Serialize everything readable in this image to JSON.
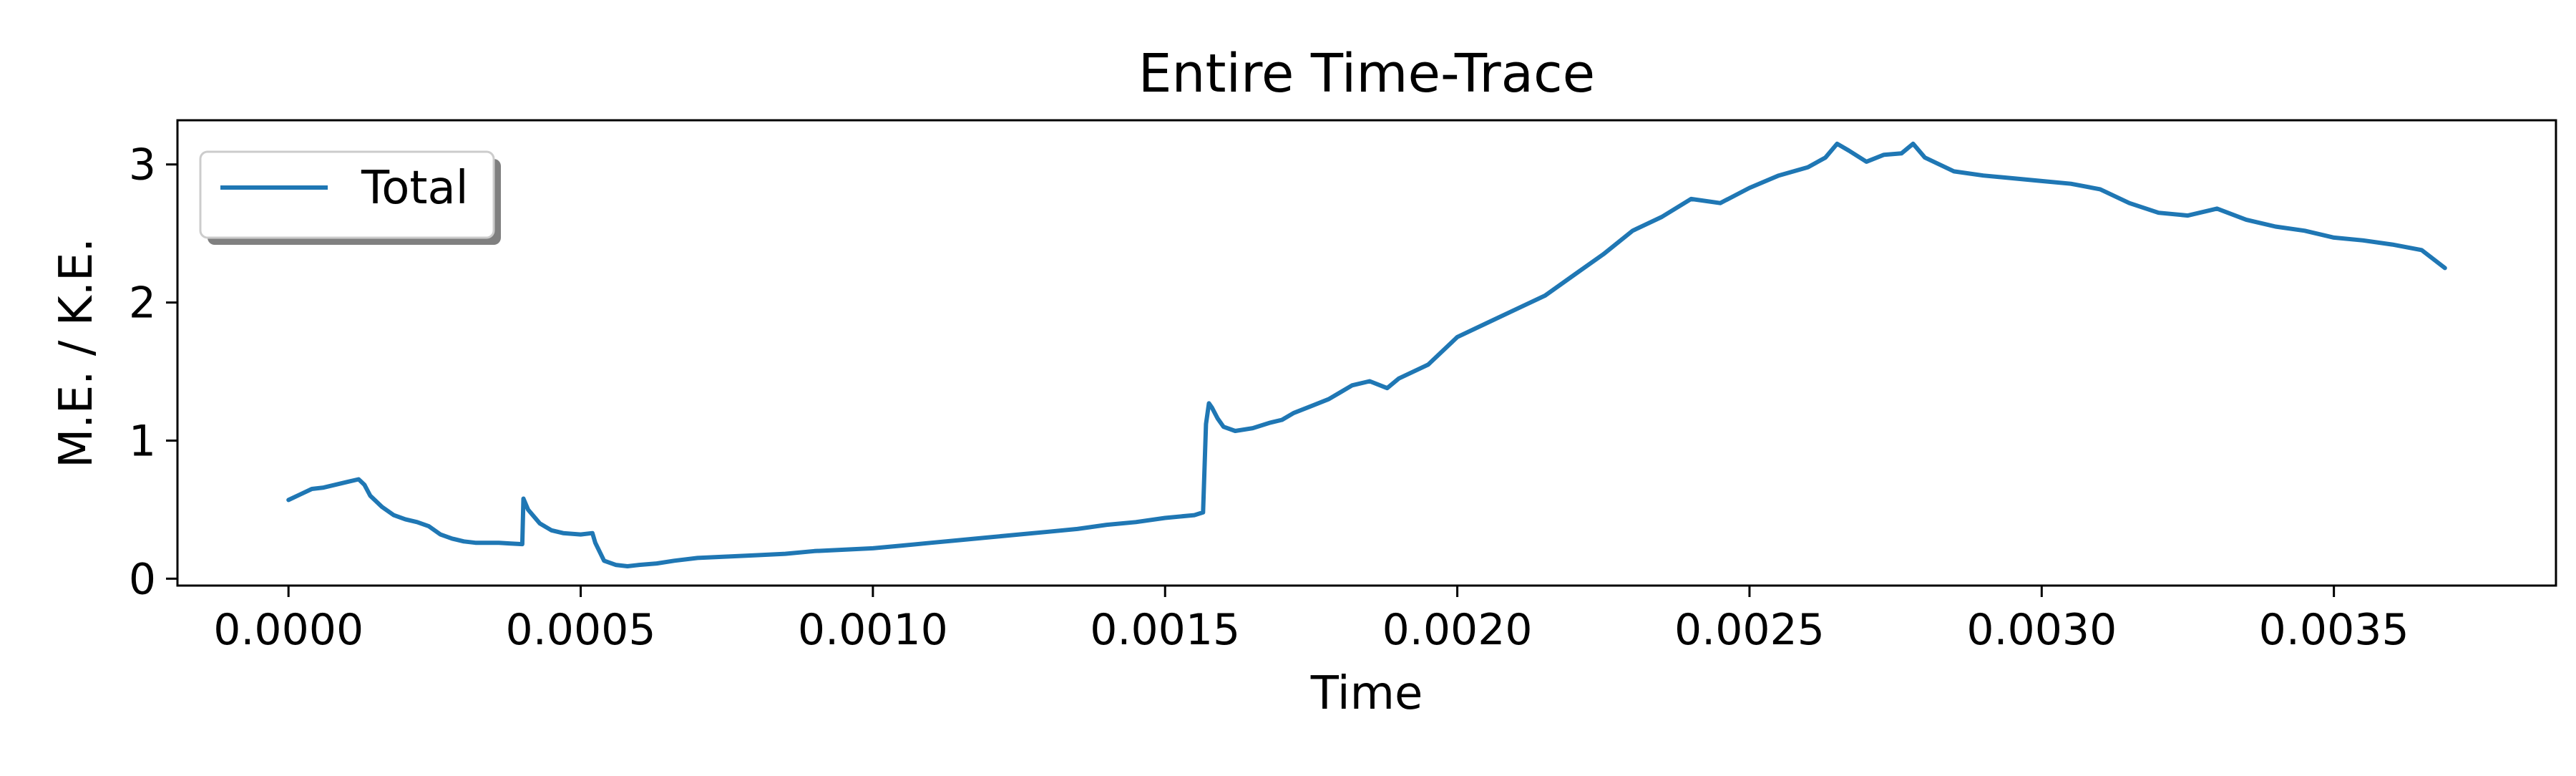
{
  "chart_data": {
    "type": "line",
    "title": "Entire Time-Trace",
    "xlabel": "Time",
    "ylabel": "M.E. / K.E.",
    "xlim": [
      -0.00019,
      0.00388
    ],
    "ylim": [
      -0.05,
      3.32
    ],
    "xticks": [
      0.0,
      0.0005,
      0.001,
      0.0015,
      0.002,
      0.0025,
      0.003,
      0.0035
    ],
    "xtick_labels": [
      "0.0000",
      "0.0005",
      "0.0010",
      "0.0015",
      "0.0020",
      "0.0025",
      "0.0030",
      "0.0035"
    ],
    "yticks": [
      0,
      1,
      2,
      3
    ],
    "ytick_labels": [
      "0",
      "1",
      "2",
      "3"
    ],
    "grid": false,
    "legend": {
      "position": "top-left",
      "entries": [
        "Total"
      ]
    },
    "series": [
      {
        "name": "Total",
        "color": "#1f77b4",
        "x": [
          0.0,
          2e-05,
          4e-05,
          6e-05,
          8e-05,
          0.0001,
          0.00012,
          0.00013,
          0.00014,
          0.00016,
          0.00018,
          0.0002,
          0.00022,
          0.00024,
          0.00026,
          0.00028,
          0.0003,
          0.00032,
          0.00034,
          0.00036,
          0.00038,
          0.0004,
          0.000402,
          0.00041,
          0.00043,
          0.00045,
          0.00047,
          0.0005,
          0.00052,
          0.000525,
          0.00054,
          0.00056,
          0.00058,
          0.0006,
          0.00063,
          0.00066,
          0.0007,
          0.00075,
          0.0008,
          0.00085,
          0.0009,
          0.00095,
          0.001,
          0.00105,
          0.0011,
          0.00115,
          0.0012,
          0.00125,
          0.0013,
          0.00135,
          0.0014,
          0.00145,
          0.0015,
          0.00155,
          0.001565,
          0.00157,
          0.001575,
          0.00158,
          0.00159,
          0.0016,
          0.00162,
          0.00165,
          0.00168,
          0.0017,
          0.00172,
          0.00175,
          0.00178,
          0.0018,
          0.00182,
          0.00185,
          0.00188,
          0.0019,
          0.00195,
          0.002,
          0.00205,
          0.0021,
          0.00215,
          0.0022,
          0.00225,
          0.0023,
          0.00235,
          0.0024,
          0.00245,
          0.0025,
          0.00255,
          0.0026,
          0.00263,
          0.00265,
          0.00267,
          0.0027,
          0.00273,
          0.00276,
          0.00278,
          0.0028,
          0.00285,
          0.0029,
          0.00295,
          0.003,
          0.00305,
          0.0031,
          0.00315,
          0.0032,
          0.00325,
          0.0033,
          0.00335,
          0.0034,
          0.00345,
          0.0035,
          0.00355,
          0.0036,
          0.00365,
          0.00369
        ],
        "y": [
          0.57,
          0.61,
          0.65,
          0.66,
          0.68,
          0.7,
          0.72,
          0.68,
          0.6,
          0.52,
          0.46,
          0.43,
          0.41,
          0.38,
          0.32,
          0.29,
          0.27,
          0.26,
          0.26,
          0.26,
          0.255,
          0.25,
          0.58,
          0.5,
          0.4,
          0.35,
          0.33,
          0.32,
          0.33,
          0.26,
          0.13,
          0.1,
          0.09,
          0.1,
          0.11,
          0.13,
          0.15,
          0.16,
          0.17,
          0.18,
          0.2,
          0.21,
          0.22,
          0.24,
          0.26,
          0.28,
          0.3,
          0.32,
          0.34,
          0.36,
          0.39,
          0.41,
          0.44,
          0.46,
          0.48,
          1.12,
          1.27,
          1.24,
          1.16,
          1.1,
          1.07,
          1.09,
          1.13,
          1.15,
          1.2,
          1.25,
          1.3,
          1.35,
          1.4,
          1.43,
          1.38,
          1.45,
          1.55,
          1.75,
          1.85,
          1.95,
          2.05,
          2.2,
          2.35,
          2.52,
          2.62,
          2.75,
          2.72,
          2.83,
          2.92,
          2.98,
          3.05,
          3.15,
          3.1,
          3.02,
          3.07,
          3.08,
          3.15,
          3.05,
          2.95,
          2.92,
          2.9,
          2.88,
          2.86,
          2.82,
          2.72,
          2.65,
          2.63,
          2.68,
          2.6,
          2.55,
          2.52,
          2.47,
          2.45,
          2.42,
          2.38,
          2.25
        ]
      }
    ]
  }
}
